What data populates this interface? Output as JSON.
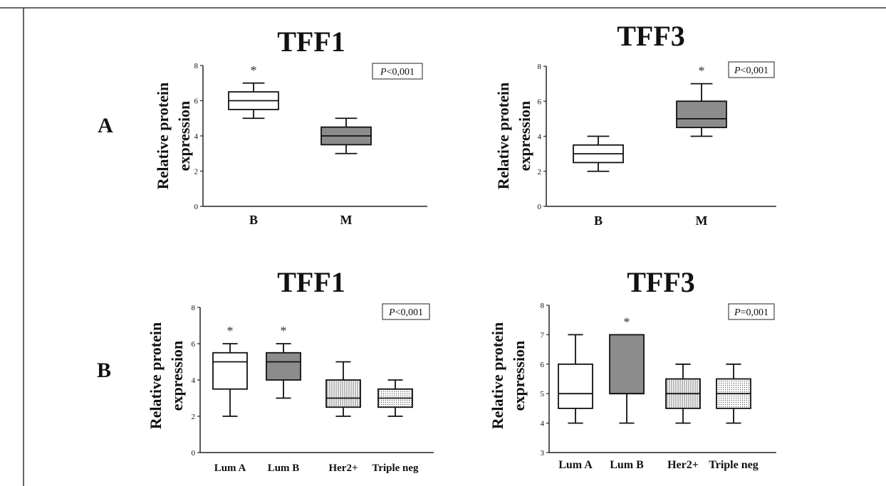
{
  "panel_labels": [
    "A",
    "B"
  ],
  "chart_data": [
    {
      "type": "box",
      "title": "TFF1",
      "ylabel": [
        "Relative protein",
        "expression"
      ],
      "ylim": [
        0,
        8
      ],
      "yticks": [
        "0",
        "2",
        "4",
        "6",
        "8"
      ],
      "pvalue": {
        "prefix": "P",
        "text": "<0,001"
      },
      "categories": [
        "B",
        "M"
      ],
      "boxes": [
        {
          "min": 5,
          "q1": 5.5,
          "median": 6,
          "q3": 6.5,
          "max": 7,
          "fill": "white",
          "star": "*"
        },
        {
          "min": 3,
          "q1": 3.5,
          "median": 4,
          "q3": 4.5,
          "max": 5,
          "fill": "gray",
          "star": ""
        }
      ]
    },
    {
      "type": "box",
      "title": "TFF3",
      "ylabel": [
        "Relative protein",
        "expression"
      ],
      "ylim": [
        0,
        8
      ],
      "yticks": [
        "0",
        "2",
        "4",
        "6",
        "8"
      ],
      "pvalue": {
        "prefix": "P",
        "text": "<0,001"
      },
      "categories": [
        "B",
        "M"
      ],
      "boxes": [
        {
          "min": 2,
          "q1": 2.5,
          "median": 3,
          "q3": 3.5,
          "max": 4,
          "fill": "white",
          "star": ""
        },
        {
          "min": 4,
          "q1": 4.5,
          "median": 5,
          "q3": 6,
          "max": 7,
          "fill": "gray",
          "star": "*"
        }
      ]
    },
    {
      "type": "box",
      "title": "TFF1",
      "ylabel": [
        "Relative protein",
        "expression"
      ],
      "ylim": [
        0,
        8
      ],
      "yticks": [
        "0",
        "2",
        "4",
        "6",
        "8"
      ],
      "pvalue": {
        "prefix": "P",
        "text": "<0,001"
      },
      "categories": [
        "Lum A",
        "Lum B",
        "Her2+",
        "Triple neg"
      ],
      "boxes": [
        {
          "min": 2,
          "q1": 3.5,
          "median": 5,
          "q3": 5.5,
          "max": 6,
          "fill": "white",
          "star": "*"
        },
        {
          "min": 3,
          "q1": 4,
          "median": 5,
          "q3": 5.5,
          "max": 6,
          "fill": "gray",
          "star": "*"
        },
        {
          "min": 2,
          "q1": 2.5,
          "median": 3,
          "q3": 4,
          "max": 5,
          "fill": "vlines",
          "star": ""
        },
        {
          "min": 2,
          "q1": 2.5,
          "median": 3,
          "q3": 3.5,
          "max": 4,
          "fill": "dots",
          "star": ""
        }
      ]
    },
    {
      "type": "box",
      "title": "TFF3",
      "ylabel": [
        "Relative protein",
        "expression"
      ],
      "ylim": [
        3,
        8
      ],
      "yticks": [
        "3",
        "4",
        "5",
        "6",
        "7",
        "8"
      ],
      "pvalue": {
        "prefix": "P",
        "text": "=0,001"
      },
      "categories": [
        "Lum A",
        "Lum B",
        "Her2+",
        "Triple neg"
      ],
      "boxes": [
        {
          "min": 4,
          "q1": 4.5,
          "median": 5,
          "q3": 6,
          "max": 7,
          "fill": "white",
          "star": ""
        },
        {
          "min": 4,
          "q1": 5,
          "median": 5,
          "q3": 7,
          "max": 7,
          "fill": "gray",
          "star": "*"
        },
        {
          "min": 4,
          "q1": 4.5,
          "median": 5,
          "q3": 5.5,
          "max": 6,
          "fill": "vlines",
          "star": ""
        },
        {
          "min": 4,
          "q1": 4.5,
          "median": 5,
          "q3": 5.5,
          "max": 6,
          "fill": "dots",
          "star": ""
        }
      ]
    }
  ]
}
